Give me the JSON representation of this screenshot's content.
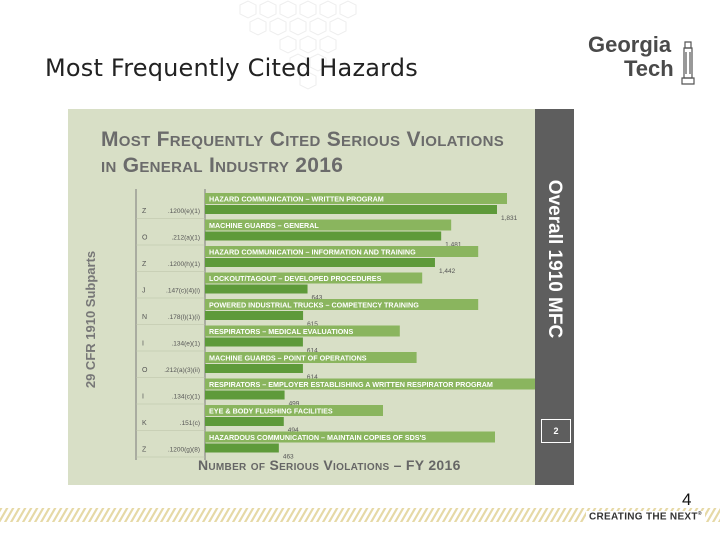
{
  "slide": {
    "title": "Most Frequently Cited Hazards",
    "page_number": "4",
    "slogan": "CREATING THE NEXT",
    "slogan_mark": "®"
  },
  "logo": {
    "line1": "Georgia",
    "line2": "Tech"
  },
  "chart_data": {
    "type": "bar",
    "orientation": "horizontal",
    "title": "Most Frequently Cited Serious Violations in General Industry 2016",
    "title_line1": "Most Frequently Cited Serious Violations",
    "title_line2": "in General Industry 2016",
    "xlabel": "Number of Serious Violations – FY 2016",
    "ylabel": "29 CFR 1910 Subparts",
    "side_label": "Overall 1910 MFC",
    "side_badge": "2",
    "xlim": [
      0,
      1900
    ],
    "grid": false,
    "legend": "none",
    "items": [
      {
        "label": "Hazard Communication – Written Program",
        "subpart": "Z",
        "code": ".1200(e)(1)",
        "value": 1831,
        "value_label": "1,831"
      },
      {
        "label": "Machine Guards – General",
        "subpart": "O",
        "code": ".212(a)(1)",
        "value": 1481,
        "value_label": "1,481"
      },
      {
        "label": "Hazard Communication – Information and Training",
        "subpart": "Z",
        "code": ".1200(h)(1)",
        "value": 1442,
        "value_label": "1,442"
      },
      {
        "label": "Lockout/Tagout – Developed Procedures",
        "subpart": "J",
        "code": ".147(c)(4)(i)",
        "value": 643,
        "value_label": "643"
      },
      {
        "label": "Powered Industrial Trucks – Competency Training",
        "subpart": "N",
        "code": ".178(l)(1)(i)",
        "value": 615,
        "value_label": "615"
      },
      {
        "label": "Respirators – Medical Evaluations",
        "subpart": "I",
        "code": ".134(e)(1)",
        "value": 614,
        "value_label": "614"
      },
      {
        "label": "Machine Guards – Point of Operations",
        "subpart": "O",
        "code": ".212(a)(3)(ii)",
        "value": 614,
        "value_label": "614"
      },
      {
        "label": "Respirators – Employer establishing a written respirator program",
        "subpart": "I",
        "code": ".134(c)(1)",
        "value": 499,
        "value_label": "499"
      },
      {
        "label": "Eye & Body flushing facilities",
        "subpart": "K",
        "code": ".151(c)",
        "value": 494,
        "value_label": "494"
      },
      {
        "label": "Hazardous Communication – Maintain copies of SDS's",
        "subpart": "Z",
        "code": ".1200(g)(8)",
        "value": 463,
        "value_label": "463"
      }
    ],
    "colors": {
      "panel": "#d8dfc6",
      "bar": "#5e9a3a",
      "label_band": "#8ab55e",
      "label_text": "#ffffff",
      "axis": "#7a7a7a",
      "text": "#555555",
      "side_bar": "#5e5e5e"
    }
  }
}
